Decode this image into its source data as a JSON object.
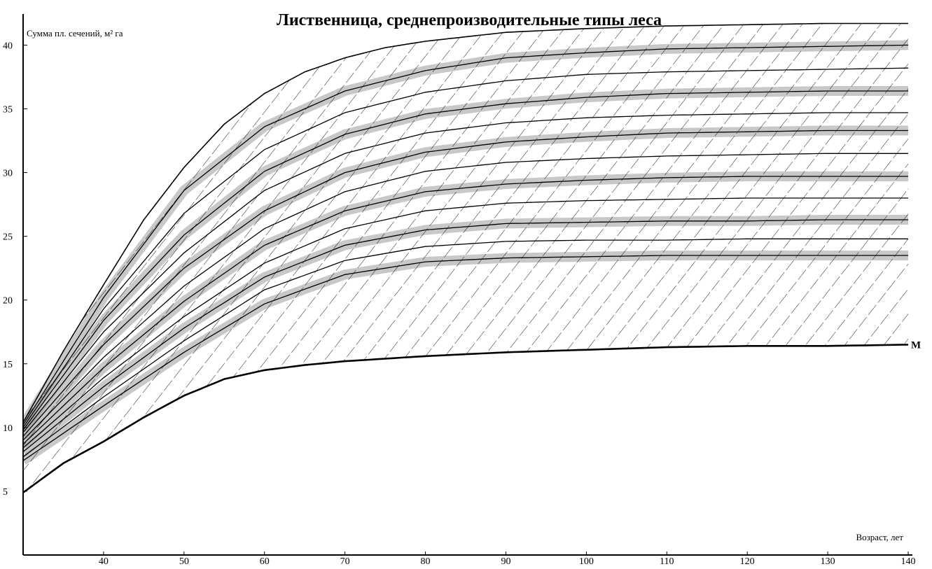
{
  "chart_data": {
    "type": "line",
    "title": "Лиственница, среднепроизводительные типы леса",
    "ylabel": "Сумма пл. сечений, м² га",
    "xlabel": "Возраст, лет",
    "xlim": [
      30,
      140
    ],
    "ylim": [
      0,
      42
    ],
    "xticks": [
      30,
      40,
      50,
      60,
      70,
      80,
      90,
      100,
      110,
      120,
      130,
      140
    ],
    "yticks": [
      5,
      10,
      15,
      20,
      25,
      30,
      35,
      40
    ],
    "grid": false,
    "fill": "diagonal-hatch-between-lower-and-upper-curves",
    "colors": {
      "line": "#000000",
      "band": "#9a9a9a",
      "background": "#ffffff"
    },
    "series": [
      {
        "role": "upper-envelope",
        "x": [
          30,
          35,
          40,
          45,
          50,
          55,
          60,
          65,
          70,
          75,
          80,
          90,
          100,
          110,
          120,
          130,
          140
        ],
        "values": [
          10.4,
          16,
          21.2,
          26.3,
          30.4,
          33.8,
          36.2,
          37.9,
          39,
          39.8,
          40.3,
          41,
          41.3,
          41.5,
          41.6,
          41.7,
          41.7
        ]
      },
      {
        "x": [
          30,
          40,
          50,
          60,
          70,
          80,
          90,
          100,
          110,
          120,
          130,
          140
        ],
        "values": [
          10.2,
          20.2,
          28.6,
          33.6,
          36.4,
          38,
          39,
          39.4,
          39.7,
          39.8,
          39.9,
          40
        ]
      },
      {
        "x": [
          30,
          40,
          50,
          60,
          70,
          80,
          90,
          100,
          110,
          120,
          130,
          140
        ],
        "values": [
          10,
          19.3,
          26.8,
          31.8,
          34.7,
          36.3,
          37.2,
          37.7,
          37.9,
          38,
          38.1,
          38.2
        ]
      },
      {
        "x": [
          30,
          40,
          50,
          60,
          70,
          80,
          90,
          100,
          110,
          120,
          130,
          140
        ],
        "values": [
          9.8,
          18.4,
          25.1,
          30.1,
          33,
          34.6,
          35.4,
          35.9,
          36.2,
          36.3,
          36.4,
          36.4
        ]
      },
      {
        "x": [
          30,
          40,
          50,
          60,
          70,
          80,
          90,
          100,
          110,
          120,
          130,
          140
        ],
        "values": [
          9.6,
          17.5,
          23.7,
          28.6,
          31.5,
          33.1,
          33.9,
          34.3,
          34.5,
          34.6,
          34.7,
          34.7
        ]
      },
      {
        "x": [
          30,
          40,
          50,
          60,
          70,
          80,
          90,
          100,
          110,
          120,
          130,
          140
        ],
        "values": [
          9.3,
          16.5,
          22.5,
          27,
          30,
          31.6,
          32.4,
          32.8,
          33.1,
          33.2,
          33.3,
          33.3
        ]
      },
      {
        "x": [
          30,
          40,
          50,
          60,
          70,
          80,
          90,
          100,
          110,
          120,
          130,
          140
        ],
        "values": [
          9,
          15.5,
          21.1,
          25.6,
          28.5,
          30.1,
          30.8,
          31.1,
          31.3,
          31.4,
          31.5,
          31.5
        ]
      },
      {
        "x": [
          30,
          40,
          50,
          60,
          70,
          80,
          90,
          100,
          110,
          120,
          130,
          140
        ],
        "values": [
          8.7,
          14.7,
          19.9,
          24.3,
          27,
          28.5,
          29.1,
          29.4,
          29.6,
          29.7,
          29.7,
          29.7
        ]
      },
      {
        "x": [
          30,
          40,
          50,
          60,
          70,
          80,
          90,
          100,
          110,
          120,
          130,
          140
        ],
        "values": [
          8.4,
          13.9,
          18.7,
          22.9,
          25.6,
          27,
          27.6,
          27.8,
          27.9,
          28,
          28,
          28
        ]
      },
      {
        "x": [
          30,
          40,
          50,
          60,
          70,
          80,
          90,
          100,
          110,
          120,
          130,
          140
        ],
        "values": [
          8.1,
          13.2,
          17.8,
          21.8,
          24.3,
          25.5,
          26,
          26.1,
          26.2,
          26.2,
          26.3,
          26.3
        ]
      },
      {
        "x": [
          30,
          40,
          50,
          60,
          70,
          80,
          90,
          100,
          110,
          120,
          130,
          140
        ],
        "values": [
          7.7,
          12.4,
          16.8,
          20.8,
          23.1,
          24.2,
          24.6,
          24.7,
          24.7,
          24.8,
          24.8,
          24.8
        ]
      },
      {
        "x": [
          30,
          40,
          50,
          60,
          70,
          80,
          90,
          100,
          110,
          120,
          130,
          140
        ],
        "values": [
          7.4,
          11.7,
          15.9,
          19.7,
          22,
          23,
          23.3,
          23.4,
          23.5,
          23.5,
          23.5,
          23.5
        ]
      },
      {
        "name": "M",
        "role": "lower-envelope",
        "x": [
          30,
          35,
          40,
          45,
          50,
          55,
          60,
          65,
          70,
          75,
          80,
          90,
          100,
          110,
          120,
          130,
          140
        ],
        "values": [
          4.9,
          7.2,
          8.9,
          10.8,
          12.5,
          13.8,
          14.5,
          14.9,
          15.2,
          15.4,
          15.6,
          15.9,
          16.1,
          16.3,
          16.4,
          16.4,
          16.5
        ]
      }
    ]
  }
}
